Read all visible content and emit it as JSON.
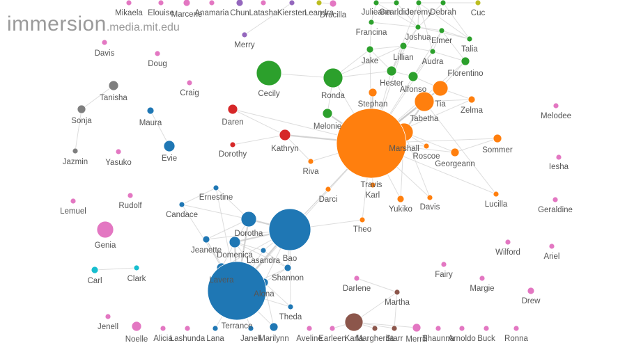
{
  "brand": {
    "name": "immersion",
    "domain": ".media.mit.edu"
  },
  "colors": {
    "orange": "#ff7f0e",
    "blue": "#1f77b4",
    "green": "#2ca02c",
    "red": "#d62728",
    "pink": "#e377c2",
    "gray": "#7f7f7f",
    "purple": "#9467bd",
    "brown": "#8c564b",
    "cyan": "#17becf",
    "olive": "#bcbd22"
  },
  "nodes": [
    {
      "id": "Mikaela",
      "label": "Mikaela",
      "group": "pink",
      "size": 4
    },
    {
      "id": "Elouise",
      "label": "Elouise",
      "group": "pink",
      "size": 4
    },
    {
      "id": "Marcene",
      "label": "Marcene",
      "group": "pink",
      "size": 5
    },
    {
      "id": "Anamaria",
      "label": "Anamaria",
      "group": "pink",
      "size": 4
    },
    {
      "id": "Chun",
      "label": "Chun",
      "group": "purple",
      "size": 5
    },
    {
      "id": "Latasha",
      "label": "Latasha",
      "group": "pink",
      "size": 4
    },
    {
      "id": "Kiersten",
      "label": "Kiersten",
      "group": "purple",
      "size": 4
    },
    {
      "id": "Leandra",
      "label": "Leandra",
      "group": "olive",
      "size": 4
    },
    {
      "id": "Drucilla",
      "label": "Drucilla",
      "group": "pink",
      "size": 5
    },
    {
      "id": "Julieann",
      "label": "Julieann",
      "group": "green",
      "size": 4
    },
    {
      "id": "Gearldine",
      "label": "Gearldine",
      "group": "green",
      "size": 4
    },
    {
      "id": "Jeremy",
      "label": "Jeremy",
      "group": "green",
      "size": 4
    },
    {
      "id": "Debrah",
      "label": "Debrah",
      "group": "green",
      "size": 4
    },
    {
      "id": "Cuc",
      "label": "Cuc",
      "group": "olive",
      "size": 4
    },
    {
      "id": "Francina",
      "label": "Francina",
      "group": "green",
      "size": 4
    },
    {
      "id": "Joshua",
      "label": "Joshua",
      "group": "green",
      "size": 4
    },
    {
      "id": "Elmer",
      "label": "Elmer",
      "group": "green",
      "size": 4
    },
    {
      "id": "Talia",
      "label": "Talia",
      "group": "green",
      "size": 4
    },
    {
      "id": "Merry",
      "label": "Merry",
      "group": "purple",
      "size": 4
    },
    {
      "id": "Davis1",
      "label": "Davis",
      "group": "pink",
      "size": 4
    },
    {
      "id": "Doug",
      "label": "Doug",
      "group": "pink",
      "size": 4
    },
    {
      "id": "Jake",
      "label": "Jake",
      "group": "green",
      "size": 5
    },
    {
      "id": "Lillian",
      "label": "Lillian",
      "group": "green",
      "size": 5
    },
    {
      "id": "Audra",
      "label": "Audra",
      "group": "green",
      "size": 4
    },
    {
      "id": "Florentino",
      "label": "Florentino",
      "group": "green",
      "size": 6
    },
    {
      "id": "Cecily",
      "label": "Cecily",
      "group": "green",
      "size": 18
    },
    {
      "id": "Ronda",
      "label": "Ronda",
      "group": "green",
      "size": 14
    },
    {
      "id": "Hester",
      "label": "Hester",
      "group": "green",
      "size": 7
    },
    {
      "id": "Alfonso",
      "label": "Alfonso",
      "group": "green",
      "size": 7
    },
    {
      "id": "Tanisha",
      "label": "Tanisha",
      "group": "gray",
      "size": 7
    },
    {
      "id": "Craig",
      "label": "Craig",
      "group": "pink",
      "size": 4
    },
    {
      "id": "Stephan",
      "label": "Stephan",
      "group": "orange",
      "size": 6
    },
    {
      "id": "Tia",
      "label": "Tia",
      "group": "orange",
      "size": 11
    },
    {
      "id": "Sonja",
      "label": "Sonja",
      "group": "gray",
      "size": 6
    },
    {
      "id": "Maura",
      "label": "Maura",
      "group": "blue",
      "size": 5
    },
    {
      "id": "Daren",
      "label": "Daren",
      "group": "red",
      "size": 7
    },
    {
      "id": "Melonie",
      "label": "Melonie",
      "group": "green",
      "size": 7
    },
    {
      "id": "Zelma",
      "label": "Zelma",
      "group": "orange",
      "size": 5
    },
    {
      "id": "Melodee",
      "label": "Melodee",
      "group": "pink",
      "size": 4
    },
    {
      "id": "Tabetha",
      "label": "Tabetha",
      "group": "orange",
      "size": 14
    },
    {
      "id": "Kathryn",
      "label": "Kathryn",
      "group": "red",
      "size": 8
    },
    {
      "id": "Evie",
      "label": "Evie",
      "group": "blue",
      "size": 8
    },
    {
      "id": "Dorothy",
      "label": "Dorothy",
      "group": "red",
      "size": 4
    },
    {
      "id": "Marshall",
      "label": "Marshall",
      "group": "orange",
      "size": 13
    },
    {
      "id": "Sommer",
      "label": "Sommer",
      "group": "orange",
      "size": 6
    },
    {
      "id": "Jazmin",
      "label": "Jazmin",
      "group": "gray",
      "size": 4
    },
    {
      "id": "Yasuko",
      "label": "Yasuko",
      "group": "pink",
      "size": 4
    },
    {
      "id": "Roscoe",
      "label": "Roscoe",
      "group": "orange",
      "size": 4
    },
    {
      "id": "Georgeann",
      "label": "Georgeann",
      "group": "orange",
      "size": 6
    },
    {
      "id": "Riva",
      "label": "Riva",
      "group": "orange",
      "size": 4
    },
    {
      "id": "Iesha",
      "label": "Iesha",
      "group": "pink",
      "size": 4
    },
    {
      "id": "Travis",
      "label": "Travis",
      "group": "orange",
      "size": 50
    },
    {
      "id": "Karl",
      "label": "Karl",
      "group": "orange",
      "size": 4
    },
    {
      "id": "Ernestine",
      "label": "Ernestine",
      "group": "blue",
      "size": 4
    },
    {
      "id": "Darci",
      "label": "Darci",
      "group": "orange",
      "size": 4
    },
    {
      "id": "Lemuel",
      "label": "Lemuel",
      "group": "pink",
      "size": 4
    },
    {
      "id": "Rudolf",
      "label": "Rudolf",
      "group": "pink",
      "size": 4
    },
    {
      "id": "Lucilla",
      "label": "Lucilla",
      "group": "orange",
      "size": 4
    },
    {
      "id": "Yukiko",
      "label": "Yukiko",
      "group": "orange",
      "size": 5
    },
    {
      "id": "Davis2",
      "label": "Davis",
      "group": "orange",
      "size": 4
    },
    {
      "id": "Geraldine",
      "label": "Geraldine",
      "group": "pink",
      "size": 4
    },
    {
      "id": "Candace",
      "label": "Candace",
      "group": "blue",
      "size": 4
    },
    {
      "id": "Theo",
      "label": "Theo",
      "group": "orange",
      "size": 4
    },
    {
      "id": "Dorotha",
      "label": "Dorotha",
      "group": "blue",
      "size": 11
    },
    {
      "id": "Bao",
      "label": "Bao",
      "group": "blue",
      "size": 30
    },
    {
      "id": "Genia",
      "label": "Genia",
      "group": "pink",
      "size": 12
    },
    {
      "id": "Jeanette",
      "label": "Jeanette",
      "group": "blue",
      "size": 5
    },
    {
      "id": "Domenica",
      "label": "Domenica",
      "group": "blue",
      "size": 8
    },
    {
      "id": "Lasandra",
      "label": "Lasandra",
      "group": "blue",
      "size": 4
    },
    {
      "id": "Wilford",
      "label": "Wilford",
      "group": "pink",
      "size": 4
    },
    {
      "id": "Ariel",
      "label": "Ariel",
      "group": "pink",
      "size": 4
    },
    {
      "id": "Carl",
      "label": "Carl",
      "group": "cyan",
      "size": 5
    },
    {
      "id": "Clark",
      "label": "Clark",
      "group": "cyan",
      "size": 4
    },
    {
      "id": "Lavera",
      "label": "Lavera",
      "group": "blue",
      "size": 7
    },
    {
      "id": "Shannon",
      "label": "Shannon",
      "group": "blue",
      "size": 5
    },
    {
      "id": "Fairy",
      "label": "Fairy",
      "group": "pink",
      "size": 4
    },
    {
      "id": "Darlene",
      "label": "Darlene",
      "group": "pink",
      "size": 4
    },
    {
      "id": "Margie",
      "label": "Margie",
      "group": "pink",
      "size": 4
    },
    {
      "id": "Alona",
      "label": "Alona",
      "group": "blue",
      "size": 6
    },
    {
      "id": "Martha",
      "label": "Martha",
      "group": "brown",
      "size": 4
    },
    {
      "id": "Drew",
      "label": "Drew",
      "group": "pink",
      "size": 5
    },
    {
      "id": "Terrance",
      "label": "Terrance",
      "group": "blue",
      "size": 42
    },
    {
      "id": "Theda",
      "label": "Theda",
      "group": "blue",
      "size": 4
    },
    {
      "id": "Jenell",
      "label": "Jenell",
      "group": "pink",
      "size": 4
    },
    {
      "id": "Noelle",
      "label": "Noelle",
      "group": "pink",
      "size": 7
    },
    {
      "id": "Alicia",
      "label": "Alicia",
      "group": "pink",
      "size": 4
    },
    {
      "id": "Lashunda",
      "label": "Lashunda",
      "group": "pink",
      "size": 4
    },
    {
      "id": "Lana",
      "label": "Lana",
      "group": "blue",
      "size": 4
    },
    {
      "id": "Janell",
      "label": "Janell",
      "group": "blue",
      "size": 4
    },
    {
      "id": "Marilynn",
      "label": "Marilynn",
      "group": "blue",
      "size": 6
    },
    {
      "id": "Aveline",
      "label": "Aveline",
      "group": "pink",
      "size": 4
    },
    {
      "id": "Earleen",
      "label": "Earleen",
      "group": "pink",
      "size": 4
    },
    {
      "id": "Karla",
      "label": "Karla",
      "group": "brown",
      "size": 13
    },
    {
      "id": "Margherita",
      "label": "Margherita",
      "group": "brown",
      "size": 4
    },
    {
      "id": "Starr",
      "label": "Starr",
      "group": "brown",
      "size": 4
    },
    {
      "id": "Merrill",
      "label": "Merrill",
      "group": "pink",
      "size": 6
    },
    {
      "id": "Shaunna",
      "label": "Shaunna",
      "group": "pink",
      "size": 4
    },
    {
      "id": "Arnoldo",
      "label": "Arnoldo",
      "group": "pink",
      "size": 4
    },
    {
      "id": "Buck",
      "label": "Buck",
      "group": "pink",
      "size": 4
    },
    {
      "id": "Ronna",
      "label": "Ronna",
      "group": "pink",
      "size": 4
    }
  ],
  "links": [
    [
      "Travis",
      "Tabetha",
      3
    ],
    [
      "Travis",
      "Marshall",
      3
    ],
    [
      "Travis",
      "Tia",
      2
    ],
    [
      "Travis",
      "Stephan",
      2
    ],
    [
      "Travis",
      "Melonie",
      2
    ],
    [
      "Travis",
      "Ronda",
      1
    ],
    [
      "Travis",
      "Kathryn",
      2
    ],
    [
      "Travis",
      "Daren",
      1
    ],
    [
      "Travis",
      "Riva",
      1
    ],
    [
      "Travis",
      "Darci",
      1
    ],
    [
      "Travis",
      "Karl",
      1
    ],
    [
      "Travis",
      "Yukiko",
      1
    ],
    [
      "Travis",
      "Roscoe",
      1
    ],
    [
      "Travis",
      "Georgeann",
      1
    ],
    [
      "Travis",
      "Sommer",
      1
    ],
    [
      "Travis",
      "Hester",
      1
    ],
    [
      "Travis",
      "Alfonso",
      1
    ],
    [
      "Travis",
      "Jake",
      1
    ],
    [
      "Travis",
      "Lillian",
      1
    ],
    [
      "Travis",
      "Bao",
      1
    ],
    [
      "Travis",
      "Terrance",
      1
    ],
    [
      "Travis",
      "Theo",
      1
    ],
    [
      "Travis",
      "Audra",
      1
    ],
    [
      "Travis",
      "Florentino",
      1
    ],
    [
      "Travis",
      "Zelma",
      1
    ],
    [
      "Travis",
      "Davis2",
      1
    ],
    [
      "Travis",
      "Lucilla",
      1
    ],
    [
      "Marshall",
      "Tabetha",
      2
    ],
    [
      "Marshall",
      "Georgeann",
      1
    ],
    [
      "Marshall",
      "Roscoe",
      1
    ],
    [
      "Marshall",
      "Davis2",
      1
    ],
    [
      "Marshall",
      "Yukiko",
      1
    ],
    [
      "Tabetha",
      "Tia",
      1
    ],
    [
      "Tabetha",
      "Zelma",
      1
    ],
    [
      "Tabetha",
      "Lucilla",
      1
    ],
    [
      "Tia",
      "Florentino",
      1
    ],
    [
      "Tia",
      "Alfonso",
      1
    ],
    [
      "Tia",
      "Zelma",
      1
    ],
    [
      "Georgeann",
      "Sommer",
      1
    ],
    [
      "Cecily",
      "Ronda",
      1
    ],
    [
      "Ronda",
      "Hester",
      1
    ],
    [
      "Ronda",
      "Jake",
      1
    ],
    [
      "Ronda",
      "Lillian",
      1
    ],
    [
      "Hester",
      "Alfonso",
      1
    ],
    [
      "Hester",
      "Lillian",
      1
    ],
    [
      "Hester",
      "Jake",
      1
    ],
    [
      "Alfonso",
      "Audra",
      1
    ],
    [
      "Jake",
      "Lillian",
      1
    ],
    [
      "Lillian",
      "Joshua",
      1
    ],
    [
      "Lillian",
      "Audra",
      1
    ],
    [
      "Joshua",
      "Francina",
      1
    ],
    [
      "Joshua",
      "Elmer",
      1
    ],
    [
      "Joshua",
      "Gearldine",
      1
    ],
    [
      "Joshua",
      "Jeremy",
      1
    ],
    [
      "Joshua",
      "Debrah",
      1
    ],
    [
      "Joshua",
      "Julieann",
      1
    ],
    [
      "Joshua",
      "Talia",
      1
    ],
    [
      "Elmer",
      "Florentino",
      1
    ],
    [
      "Elmer",
      "Talia",
      1
    ],
    [
      "Audra",
      "Florentino",
      1
    ],
    [
      "Audra",
      "Elmer",
      1
    ],
    [
      "Jeremy",
      "Debrah",
      1
    ],
    [
      "Gearldine",
      "Julieann",
      1
    ],
    [
      "Francina",
      "Julieann",
      1
    ],
    [
      "Debrah",
      "Talia",
      1
    ],
    [
      "Jeremy",
      "Talia",
      1
    ],
    [
      "Jake",
      "Francina",
      1
    ],
    [
      "Audra",
      "Jeremy",
      1
    ],
    [
      "Hester",
      "Joshua",
      1
    ],
    [
      "Alfonso",
      "Elmer",
      1
    ],
    [
      "Debrah",
      "Cuc",
      1
    ],
    [
      "Merry",
      "Kiersten",
      1
    ],
    [
      "Drucilla",
      "Leandra",
      1
    ],
    [
      "Ronda",
      "Melonie",
      1
    ],
    [
      "Jeremy",
      "Hester",
      1
    ],
    [
      "Kathryn",
      "Daren",
      1
    ],
    [
      "Kathryn",
      "Dorothy",
      1
    ],
    [
      "Kathryn",
      "Riva",
      1
    ],
    [
      "Tanisha",
      "Sonja",
      1
    ],
    [
      "Sonja",
      "Jazmin",
      1
    ],
    [
      "Maura",
      "Evie",
      1
    ],
    [
      "Carl",
      "Clark",
      1
    ],
    [
      "Bao",
      "Terrance",
      2
    ],
    [
      "Bao",
      "Dorotha",
      2
    ],
    [
      "Bao",
      "Domenica",
      2
    ],
    [
      "Bao",
      "Lasandra",
      1
    ],
    [
      "Bao",
      "Shannon",
      1
    ],
    [
      "Bao",
      "Alona",
      1
    ],
    [
      "Bao",
      "Lavera",
      1
    ],
    [
      "Bao",
      "Jeanette",
      1
    ],
    [
      "Bao",
      "Darci",
      1
    ],
    [
      "Bao",
      "Theo",
      1
    ],
    [
      "Bao",
      "Theda",
      1
    ],
    [
      "Terrance",
      "Dorotha",
      2
    ],
    [
      "Terrance",
      "Domenica",
      2
    ],
    [
      "Terrance",
      "Lavera",
      2
    ],
    [
      "Terrance",
      "Alona",
      1
    ],
    [
      "Terrance",
      "Shannon",
      1
    ],
    [
      "Terrance",
      "Lasandra",
      1
    ],
    [
      "Terrance",
      "Jeanette",
      1
    ],
    [
      "Terrance",
      "Candace",
      1
    ],
    [
      "Terrance",
      "Ernestine",
      1
    ],
    [
      "Terrance",
      "Theda",
      1
    ],
    [
      "Terrance",
      "Marilynn",
      1
    ],
    [
      "Terrance",
      "Lana",
      1
    ],
    [
      "Terrance",
      "Janell",
      1
    ],
    [
      "Dorotha",
      "Domenica",
      1
    ],
    [
      "Dorotha",
      "Jeanette",
      1
    ],
    [
      "Dorotha",
      "Candace",
      1
    ],
    [
      "Dorotha",
      "Ernestine",
      1
    ],
    [
      "Domenica",
      "Lavera",
      1
    ],
    [
      "Domenica",
      "Lasandra",
      1
    ],
    [
      "Domenica",
      "Alona",
      1
    ],
    [
      "Domenica",
      "Shannon",
      1
    ],
    [
      "Lavera",
      "Alona",
      1
    ],
    [
      "Shannon",
      "Alona",
      1
    ],
    [
      "Shannon",
      "Lasandra",
      1
    ],
    [
      "Alona",
      "Theda",
      1
    ],
    [
      "Marilynn",
      "Alona",
      1
    ],
    [
      "Jeanette",
      "Lavera",
      1
    ],
    [
      "Candace",
      "Ernestine",
      1
    ],
    [
      "Karla",
      "Martha",
      1
    ],
    [
      "Karla",
      "Margherita",
      1
    ],
    [
      "Karla",
      "Starr",
      1
    ],
    [
      "Karla",
      "Merrill",
      1
    ],
    [
      "Martha",
      "Starr",
      1
    ],
    [
      "Karla",
      "Earleen",
      1
    ],
    [
      "Martha",
      "Darlene",
      1
    ]
  ]
}
